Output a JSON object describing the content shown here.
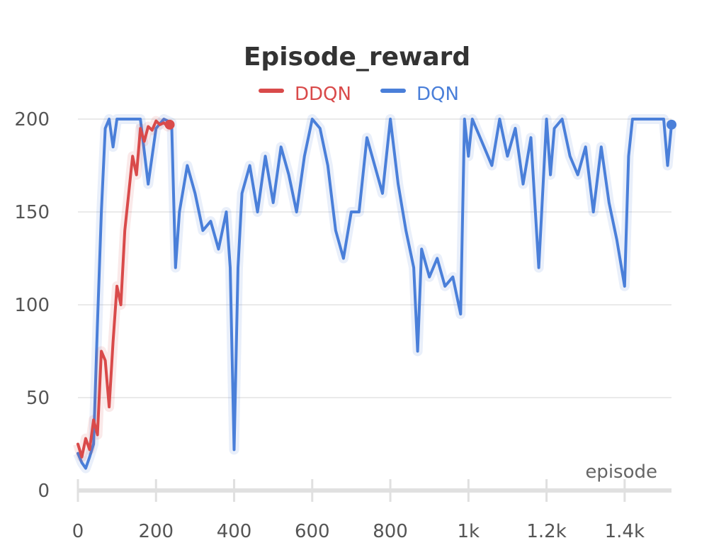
{
  "chart_data": {
    "type": "line",
    "title": "Episode_reward",
    "xlabel": "episode",
    "ylabel": "",
    "xlim": [
      0,
      1520
    ],
    "ylim": [
      0,
      200
    ],
    "grid": true,
    "legend_position": "top-center",
    "x_ticks": [
      {
        "value": 0,
        "label": "0"
      },
      {
        "value": 200,
        "label": "200"
      },
      {
        "value": 400,
        "label": "400"
      },
      {
        "value": 600,
        "label": "600"
      },
      {
        "value": 800,
        "label": "800"
      },
      {
        "value": 1000,
        "label": "1k"
      },
      {
        "value": 1200,
        "label": "1.2k"
      },
      {
        "value": 1400,
        "label": "1.4k"
      }
    ],
    "y_ticks": [
      {
        "value": 0,
        "label": "0"
      },
      {
        "value": 50,
        "label": "50"
      },
      {
        "value": 100,
        "label": "100"
      },
      {
        "value": 150,
        "label": "150"
      },
      {
        "value": 200,
        "label": "200"
      }
    ],
    "series": [
      {
        "name": "DDQN",
        "color": "#d94a4a",
        "x": [
          0,
          10,
          20,
          30,
          40,
          50,
          60,
          70,
          80,
          90,
          100,
          110,
          120,
          130,
          140,
          150,
          160,
          170,
          180,
          190,
          200,
          210,
          220,
          230,
          235
        ],
        "values": [
          25,
          18,
          28,
          22,
          38,
          30,
          75,
          70,
          45,
          80,
          110,
          100,
          140,
          160,
          180,
          170,
          195,
          188,
          196,
          194,
          199,
          197,
          198,
          196,
          197
        ]
      },
      {
        "name": "DQN",
        "color": "#4a7fd9",
        "x": [
          0,
          10,
          20,
          30,
          40,
          50,
          60,
          70,
          80,
          90,
          100,
          120,
          140,
          160,
          180,
          200,
          220,
          240,
          250,
          260,
          280,
          300,
          320,
          340,
          360,
          380,
          390,
          400,
          410,
          420,
          440,
          460,
          480,
          500,
          520,
          540,
          560,
          580,
          600,
          620,
          640,
          660,
          680,
          700,
          720,
          740,
          760,
          780,
          800,
          820,
          840,
          860,
          870,
          880,
          900,
          920,
          940,
          960,
          980,
          990,
          1000,
          1010,
          1020,
          1040,
          1060,
          1080,
          1100,
          1120,
          1140,
          1160,
          1180,
          1200,
          1210,
          1220,
          1240,
          1260,
          1280,
          1300,
          1320,
          1340,
          1360,
          1380,
          1400,
          1410,
          1420,
          1440,
          1460,
          1480,
          1500,
          1510,
          1520
        ],
        "values": [
          20,
          15,
          12,
          18,
          25,
          90,
          150,
          195,
          200,
          185,
          200,
          200,
          200,
          200,
          165,
          195,
          200,
          198,
          120,
          150,
          175,
          160,
          140,
          145,
          130,
          150,
          120,
          22,
          120,
          160,
          175,
          150,
          180,
          155,
          185,
          170,
          150,
          180,
          200,
          195,
          175,
          140,
          125,
          150,
          150,
          190,
          175,
          160,
          200,
          165,
          140,
          120,
          75,
          130,
          115,
          125,
          110,
          115,
          95,
          200,
          180,
          200,
          195,
          185,
          175,
          200,
          180,
          195,
          165,
          190,
          120,
          200,
          170,
          195,
          200,
          180,
          170,
          185,
          150,
          185,
          155,
          135,
          110,
          180,
          200,
          200,
          200,
          200,
          200,
          175,
          197
        ]
      }
    ]
  }
}
